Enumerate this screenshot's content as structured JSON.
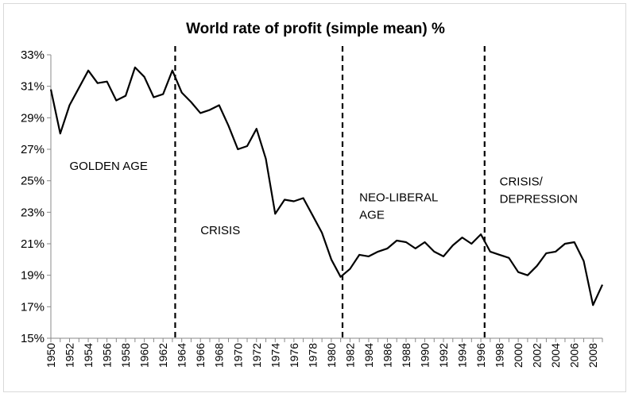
{
  "chart_data": {
    "type": "line",
    "title": "World rate of profit (simple mean) %",
    "xlabel": "",
    "ylabel": "",
    "xlim": [
      1950,
      2009
    ],
    "ylim": [
      15,
      33
    ],
    "y_ticks": [
      "15%",
      "17%",
      "19%",
      "21%",
      "23%",
      "25%",
      "27%",
      "29%",
      "31%",
      "33%"
    ],
    "x_ticks": [
      "1950",
      "1952",
      "1954",
      "1956",
      "1958",
      "1960",
      "1962",
      "1964",
      "1966",
      "1968",
      "1970",
      "1972",
      "1974",
      "1976",
      "1978",
      "1980",
      "1982",
      "1984",
      "1986",
      "1988",
      "1990",
      "1992",
      "1994",
      "1996",
      "1998",
      "2000",
      "2002",
      "2004",
      "2006",
      "2008"
    ],
    "grid": false,
    "series": [
      {
        "name": "",
        "color": "#000000",
        "x": [
          1950,
          1951,
          1952,
          1953,
          1954,
          1955,
          1956,
          1957,
          1958,
          1959,
          1960,
          1961,
          1962,
          1963,
          1964,
          1965,
          1966,
          1967,
          1968,
          1969,
          1970,
          1971,
          1972,
          1973,
          1974,
          1975,
          1976,
          1977,
          1978,
          1979,
          1980,
          1981,
          1982,
          1983,
          1984,
          1985,
          1986,
          1987,
          1988,
          1989,
          1990,
          1991,
          1992,
          1993,
          1994,
          1995,
          1996,
          1997,
          1998,
          1999,
          2000,
          2001,
          2002,
          2003,
          2004,
          2005,
          2006,
          2007,
          2008,
          2009
        ],
        "y": [
          30.8,
          28.0,
          29.8,
          30.9,
          32.0,
          31.2,
          31.3,
          30.1,
          30.4,
          32.2,
          31.6,
          30.3,
          30.5,
          32.0,
          30.6,
          30.0,
          29.3,
          29.5,
          29.8,
          28.5,
          27.0,
          27.2,
          28.3,
          26.4,
          22.9,
          23.8,
          23.7,
          23.9,
          22.8,
          21.7,
          20.0,
          18.9,
          19.4,
          20.3,
          20.2,
          20.5,
          20.7,
          21.2,
          21.1,
          20.7,
          21.1,
          20.5,
          20.2,
          20.9,
          21.4,
          21.0,
          21.6,
          20.5,
          20.3,
          20.1,
          19.2,
          19.0,
          19.6,
          20.4,
          20.5,
          21.0,
          21.1,
          19.9,
          17.1,
          18.4
        ]
      }
    ],
    "dividers": [
      1963.3,
      1981.2,
      1996.4
    ],
    "annotations": [
      {
        "lines": [
          "GOLDEN AGE"
        ],
        "x": 1952,
        "y": 25.7
      },
      {
        "lines": [
          "CRISIS"
        ],
        "x": 1966,
        "y": 21.6
      },
      {
        "lines": [
          "NEO-LIBERAL",
          "AGE"
        ],
        "x": 1983,
        "y": 23.7
      },
      {
        "lines": [
          "CRISIS/",
          "DEPRESSION"
        ],
        "x": 1998,
        "y": 24.7
      }
    ]
  }
}
